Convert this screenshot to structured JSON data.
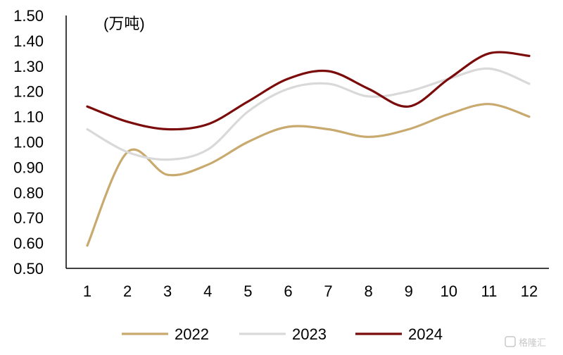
{
  "chart_data": {
    "type": "line",
    "unit_label": "(万吨)",
    "x": [
      "1",
      "2",
      "3",
      "4",
      "5",
      "6",
      "7",
      "8",
      "9",
      "10",
      "11",
      "12"
    ],
    "ylim": [
      0.5,
      1.5
    ],
    "yticks": [
      "0.50",
      "0.60",
      "0.70",
      "0.80",
      "0.90",
      "1.00",
      "1.10",
      "1.20",
      "1.30",
      "1.40",
      "1.50"
    ],
    "grid": false,
    "legend_position": "bottom",
    "series": [
      {
        "name": "2022",
        "color": "#C8A96E",
        "values": [
          0.59,
          0.96,
          0.87,
          0.91,
          1.0,
          1.06,
          1.05,
          1.02,
          1.05,
          1.11,
          1.15,
          1.1
        ]
      },
      {
        "name": "2023",
        "color": "#D9D9D9",
        "values": [
          1.05,
          0.96,
          0.93,
          0.97,
          1.12,
          1.21,
          1.23,
          1.18,
          1.2,
          1.25,
          1.29,
          1.23
        ]
      },
      {
        "name": "2024",
        "color": "#7B0A0A",
        "values": [
          1.14,
          1.08,
          1.05,
          1.07,
          1.16,
          1.25,
          1.28,
          1.21,
          1.14,
          1.25,
          1.35,
          1.34
        ]
      }
    ]
  },
  "watermark": {
    "icon": "logo-icon",
    "text": "格隆汇"
  }
}
